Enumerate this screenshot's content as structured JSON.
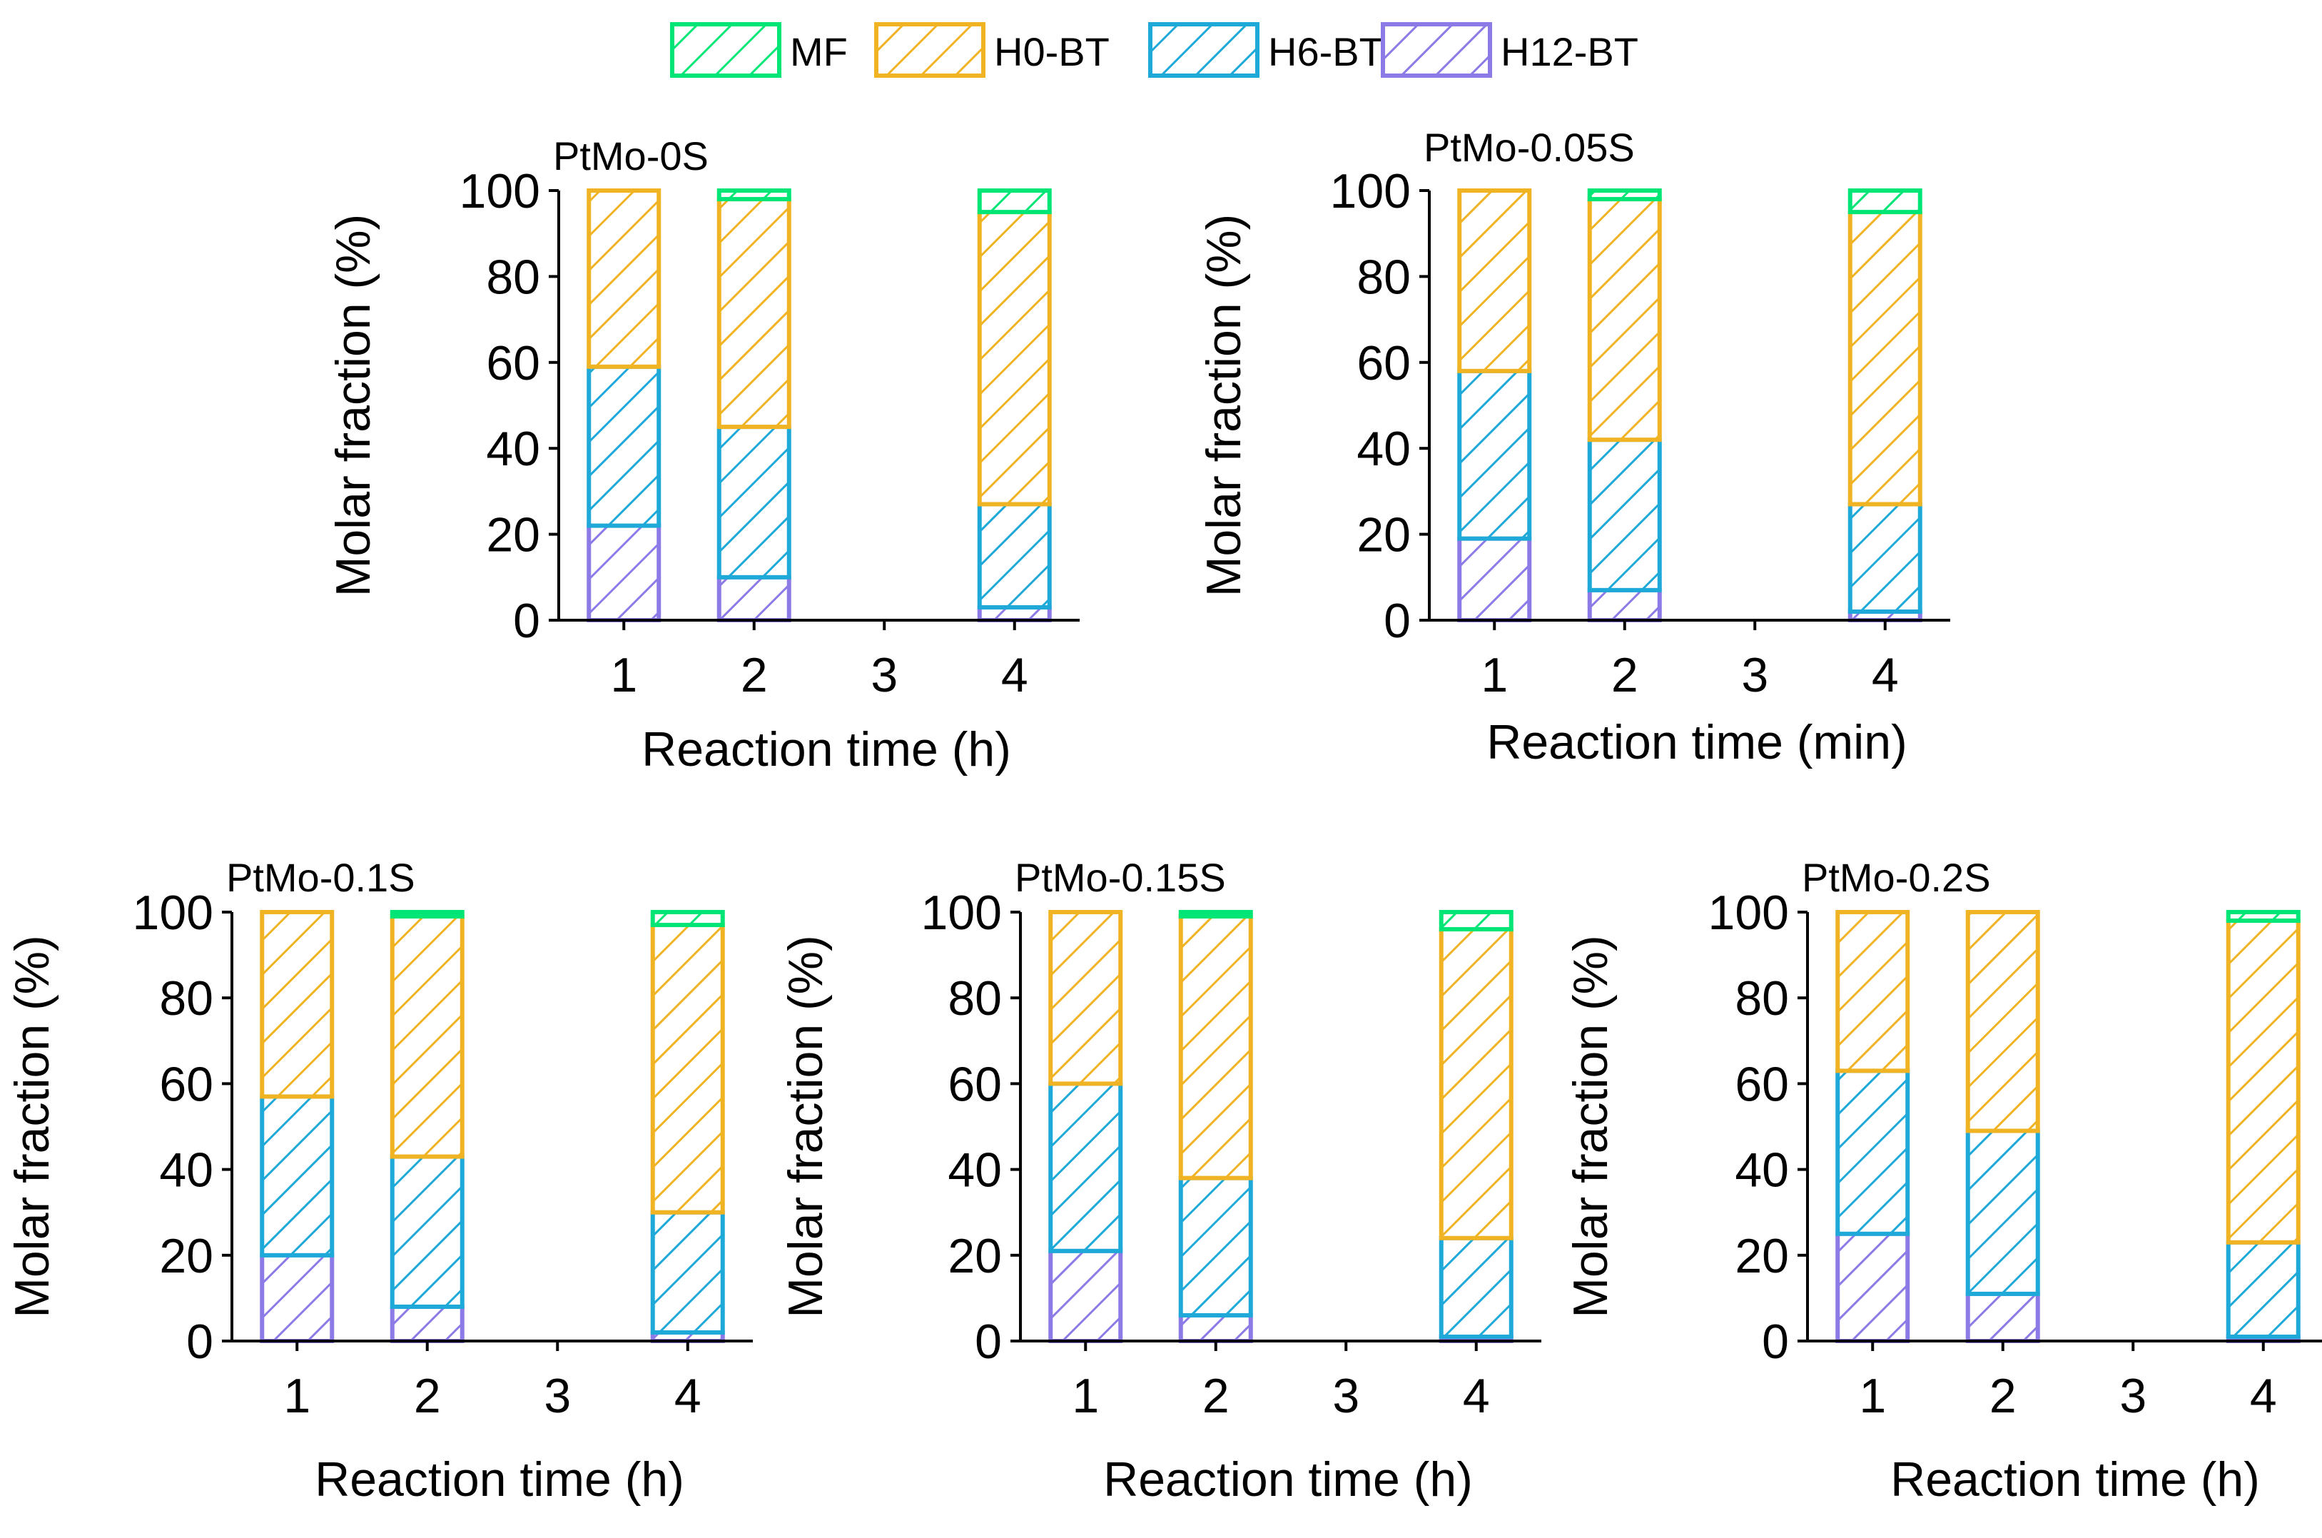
{
  "figure": {
    "legend": [
      {
        "label": "MF",
        "color": "#00e676"
      },
      {
        "label": "H0-BT",
        "color": "#f0b323"
      },
      {
        "label": "H6-BT",
        "color": "#1ea9d8"
      },
      {
        "label": "H12-BT",
        "color": "#8c7ae6"
      }
    ]
  },
  "chart_data": [
    {
      "type": "bar",
      "stacked": true,
      "title": "PtMo-0S",
      "xlabel": "Reaction time (h)",
      "ylabel": "Molar fraction (%)",
      "ylim": [
        0,
        100
      ],
      "yticks": [
        "0",
        "20",
        "40",
        "60",
        "80",
        "100"
      ],
      "xlim": [
        0.5,
        4.5
      ],
      "xticks": [
        "1",
        "2",
        "3",
        "4"
      ],
      "x": [
        1,
        2,
        4
      ],
      "series": [
        {
          "name": "H12-BT",
          "values": [
            22,
            10,
            3
          ]
        },
        {
          "name": "H6-BT",
          "values": [
            37,
            35,
            24
          ]
        },
        {
          "name": "H0-BT",
          "values": [
            41,
            53,
            68
          ]
        },
        {
          "name": "MF",
          "values": [
            0,
            2,
            5
          ]
        }
      ]
    },
    {
      "type": "bar",
      "stacked": true,
      "title": "PtMo-0.05S",
      "xlabel": "Reaction time (min)",
      "ylabel": "Molar fraction (%)",
      "ylim": [
        0,
        100
      ],
      "yticks": [
        "0",
        "20",
        "40",
        "60",
        "80",
        "100"
      ],
      "xlim": [
        0.5,
        4.5
      ],
      "xticks": [
        "1",
        "2",
        "3",
        "4"
      ],
      "x": [
        1,
        2,
        4
      ],
      "series": [
        {
          "name": "H12-BT",
          "values": [
            19,
            7,
            2
          ]
        },
        {
          "name": "H6-BT",
          "values": [
            39,
            35,
            25
          ]
        },
        {
          "name": "H0-BT",
          "values": [
            42,
            56,
            68
          ]
        },
        {
          "name": "MF",
          "values": [
            0,
            2,
            5
          ]
        }
      ]
    },
    {
      "type": "bar",
      "stacked": true,
      "title": "PtMo-0.1S",
      "xlabel": "Reaction time (h)",
      "ylabel": "Molar fraction (%)",
      "ylim": [
        0,
        100
      ],
      "yticks": [
        "0",
        "20",
        "40",
        "60",
        "80",
        "100"
      ],
      "xlim": [
        0.5,
        4.5
      ],
      "xticks": [
        "1",
        "2",
        "3",
        "4"
      ],
      "x": [
        1,
        2,
        4
      ],
      "series": [
        {
          "name": "H12-BT",
          "values": [
            20,
            8,
            2
          ]
        },
        {
          "name": "H6-BT",
          "values": [
            37,
            35,
            28
          ]
        },
        {
          "name": "H0-BT",
          "values": [
            43,
            56,
            67
          ]
        },
        {
          "name": "MF",
          "values": [
            0,
            1,
            3
          ]
        }
      ]
    },
    {
      "type": "bar",
      "stacked": true,
      "title": "PtMo-0.15S",
      "xlabel": "Reaction time (h)",
      "ylabel": "Molar fraction (%)",
      "ylim": [
        0,
        100
      ],
      "yticks": [
        "0",
        "20",
        "40",
        "60",
        "80",
        "100"
      ],
      "xlim": [
        0.5,
        4.5
      ],
      "xticks": [
        "1",
        "2",
        "3",
        "4"
      ],
      "x": [
        1,
        2,
        4
      ],
      "series": [
        {
          "name": "H12-BT",
          "values": [
            21,
            6,
            1
          ]
        },
        {
          "name": "H6-BT",
          "values": [
            39,
            32,
            23
          ]
        },
        {
          "name": "H0-BT",
          "values": [
            40,
            61,
            72
          ]
        },
        {
          "name": "MF",
          "values": [
            0,
            1,
            4
          ]
        }
      ]
    },
    {
      "type": "bar",
      "stacked": true,
      "title": "PtMo-0.2S",
      "xlabel": "Reaction time (h)",
      "ylabel": "Molar fraction (%)",
      "ylim": [
        0,
        100
      ],
      "yticks": [
        "0",
        "20",
        "40",
        "60",
        "80",
        "100"
      ],
      "xlim": [
        0.5,
        4.5
      ],
      "xticks": [
        "1",
        "2",
        "3",
        "4"
      ],
      "x": [
        1,
        2,
        4
      ],
      "series": [
        {
          "name": "H12-BT",
          "values": [
            25,
            11,
            1
          ]
        },
        {
          "name": "H6-BT",
          "values": [
            38,
            38,
            22
          ]
        },
        {
          "name": "H0-BT",
          "values": [
            37,
            51,
            75
          ]
        },
        {
          "name": "MF",
          "values": [
            0,
            0,
            2
          ]
        }
      ]
    }
  ]
}
